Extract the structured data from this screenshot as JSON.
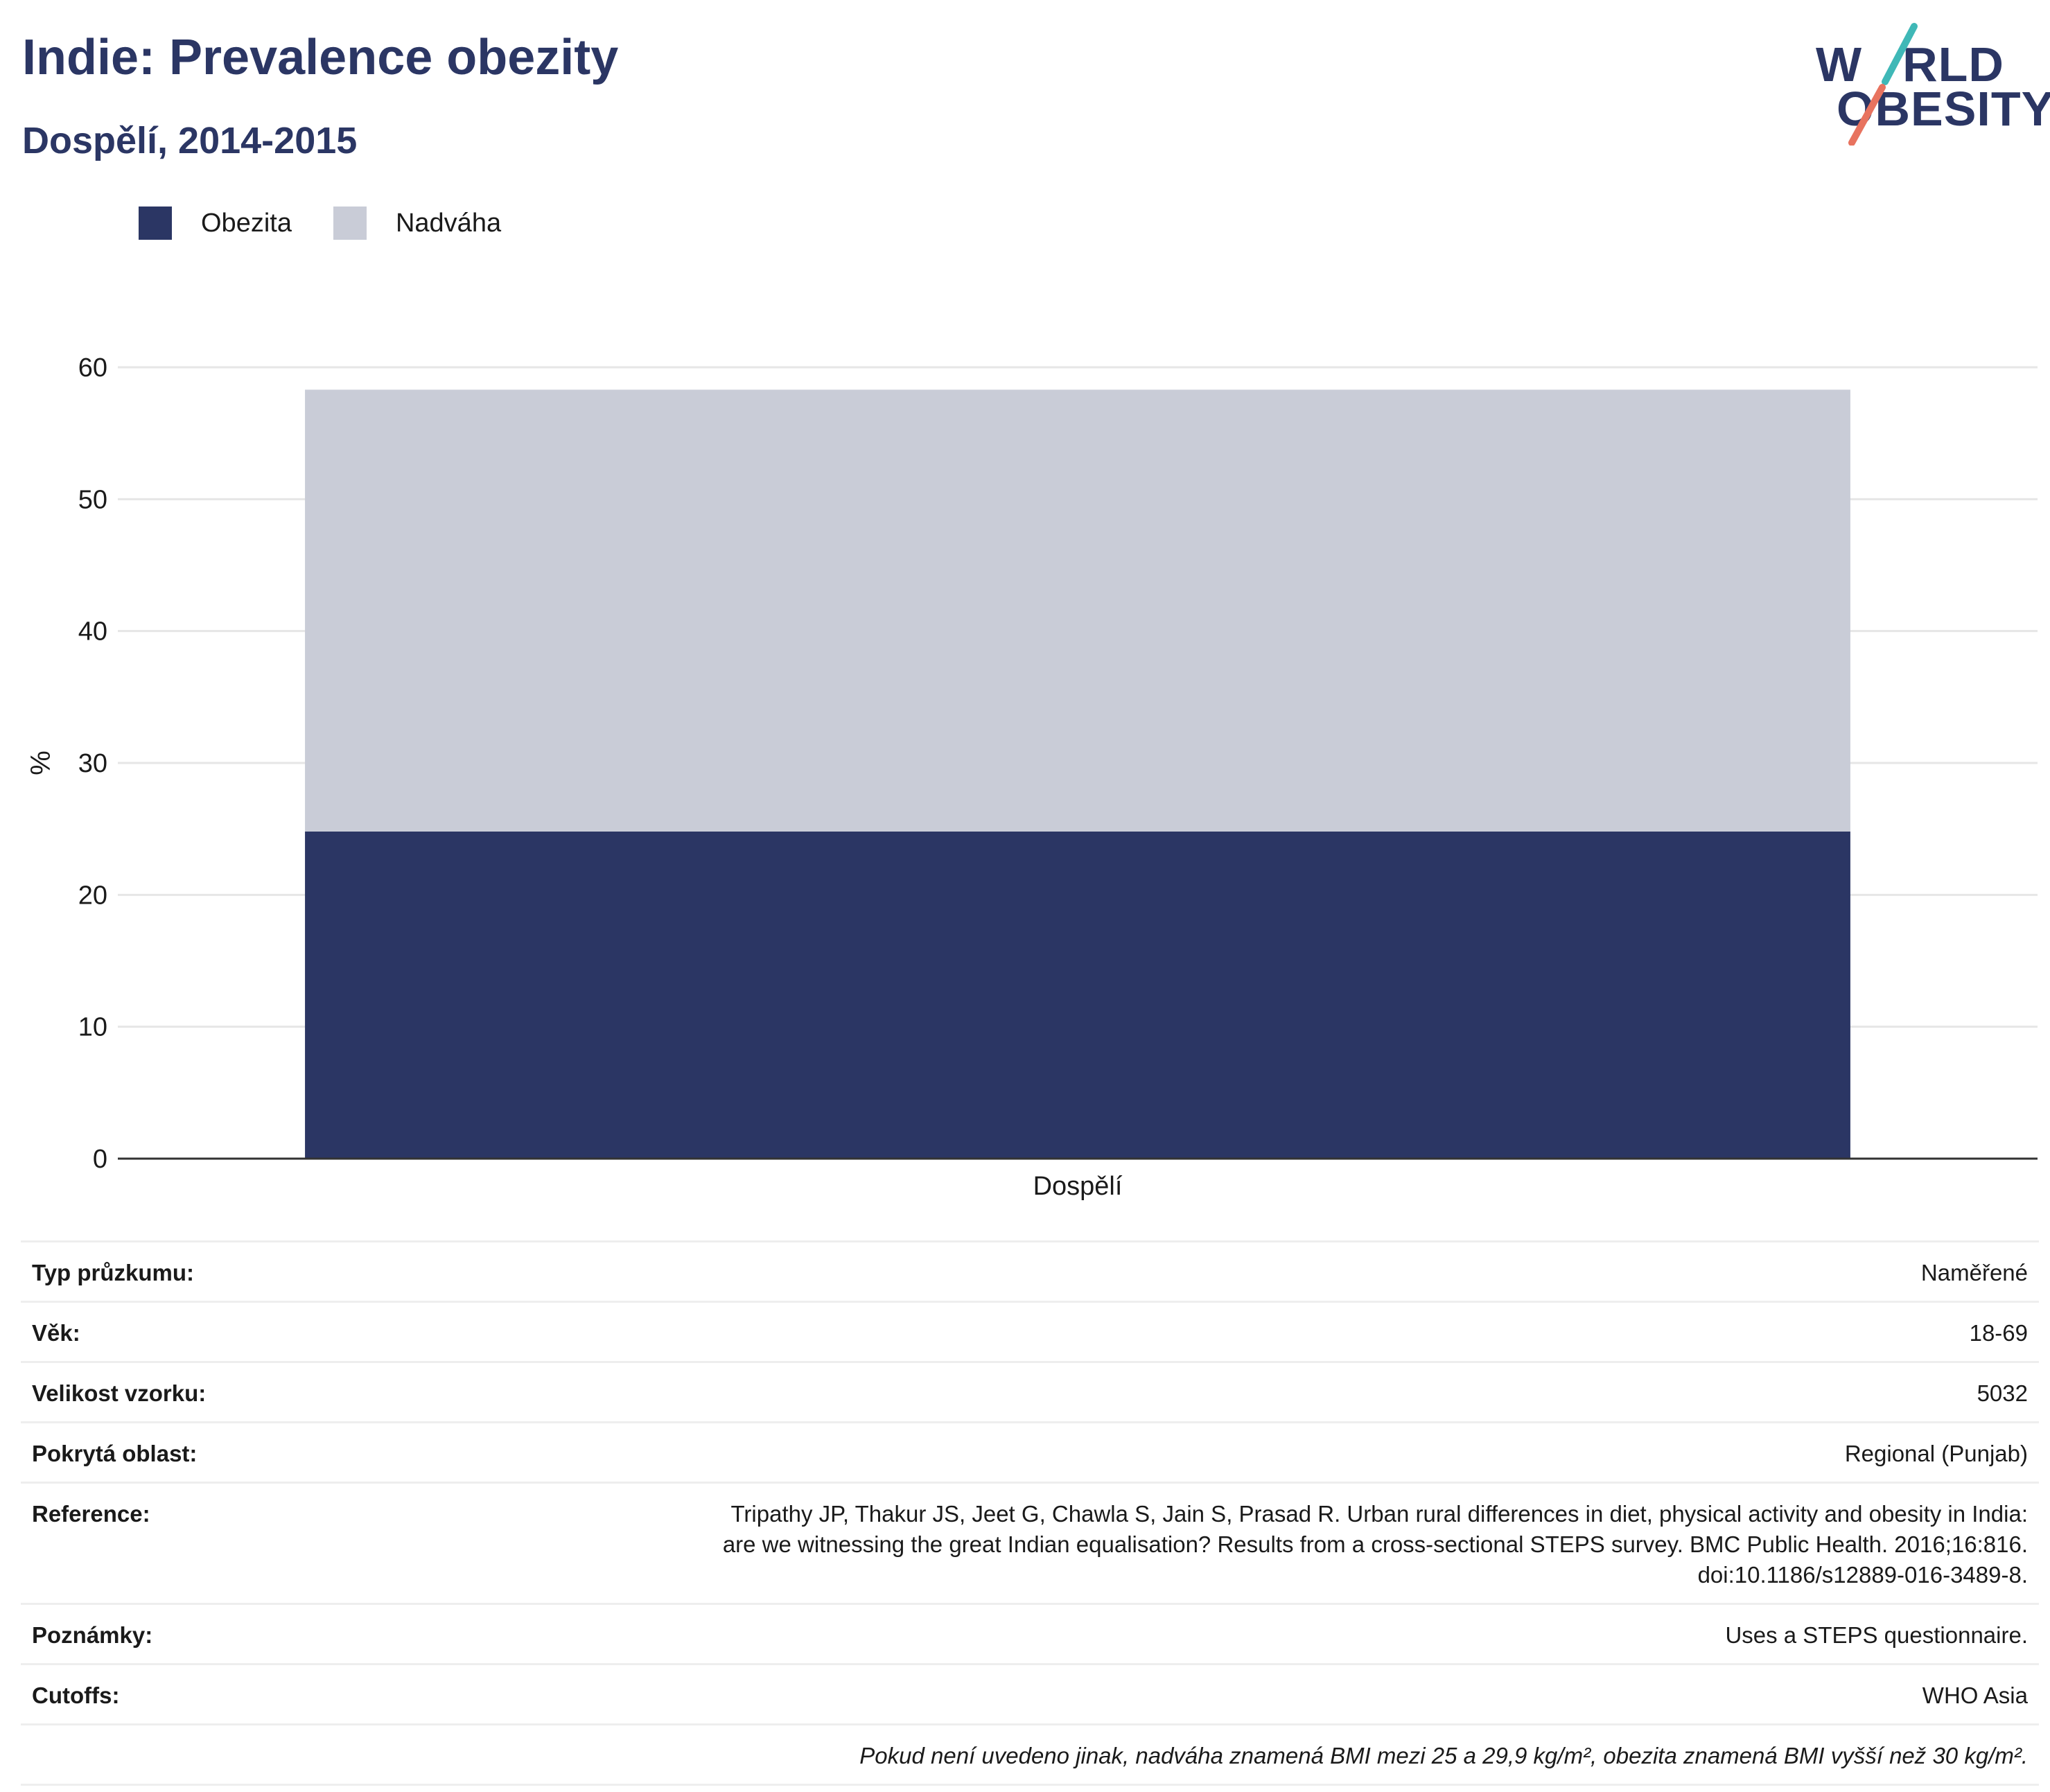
{
  "header": {
    "title": "Indie: Prevalence obezity",
    "subtitle": "Dospělí, 2014-2015"
  },
  "logo": {
    "line1": "W",
    "line1_rest": "RLD",
    "line2": "OBESITY",
    "slash_colors": [
      "#3fb8b7",
      "#e8735f"
    ]
  },
  "colors": {
    "obesity": "#2b3664",
    "overweight": "#c9ccd7",
    "grid": "#e6e6e6",
    "axis": "#333333"
  },
  "chart_data": {
    "type": "bar",
    "stacked": true,
    "categories": [
      "Dospělí"
    ],
    "series": [
      {
        "name": "Obezita",
        "values": [
          24.8
        ],
        "color": "#2b3664"
      },
      {
        "name": "Nadváha",
        "values": [
          33.5
        ],
        "color": "#c9ccd7"
      }
    ],
    "xlabel": "",
    "ylabel": "%",
    "ylim": [
      0,
      60
    ],
    "yticks": [
      0,
      10,
      20,
      30,
      40,
      50,
      60
    ],
    "grid": true,
    "legend_position": "top-left"
  },
  "info": [
    {
      "key": "Typ průzkumu:",
      "value": "Naměřené"
    },
    {
      "key": "Věk:",
      "value": "18-69"
    },
    {
      "key": "Velikost vzorku:",
      "value": "5032"
    },
    {
      "key": "Pokrytá oblast:",
      "value": "Regional (Punjab)"
    },
    {
      "key": "Reference:",
      "value": "Tripathy JP, Thakur JS, Jeet G, Chawla S, Jain S, Prasad R. Urban rural differences in diet, physical activity and obesity in India: are we witnessing the great Indian equalisation? Results from a cross-sectional STEPS survey. BMC Public Health. 2016;16:816. doi:10.1186/s12889-016-3489-8."
    },
    {
      "key": "Poznámky:",
      "value": "Uses a STEPS questionnaire."
    },
    {
      "key": "Cutoffs:",
      "value": "WHO Asia"
    }
  ],
  "footnote": "Pokud není uvedeno jinak, nadváha znamená BMI mezi 25 a 29,9 kg/m², obezita znamená BMI vyšší než 30 kg/m²."
}
